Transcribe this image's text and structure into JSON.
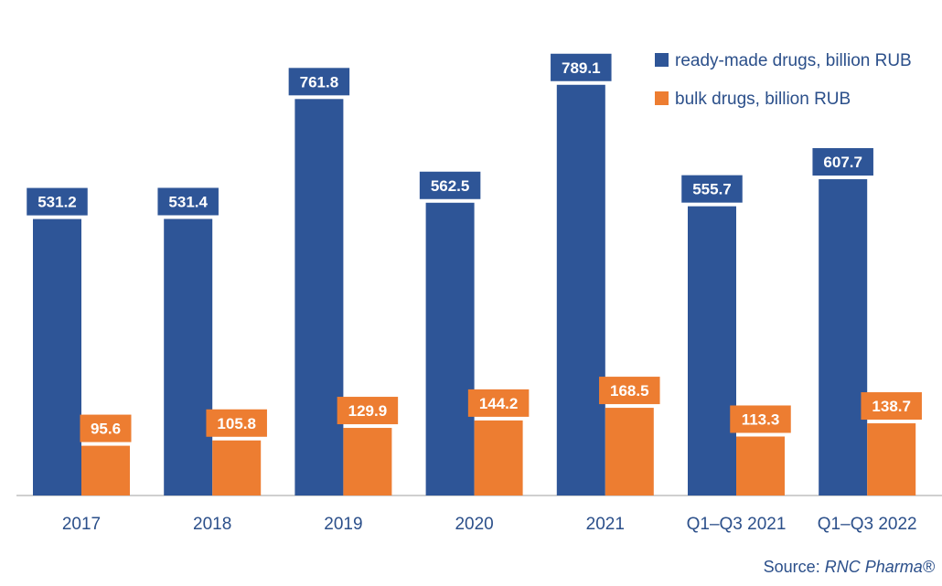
{
  "chart_data": {
    "type": "bar",
    "categories": [
      "2017",
      "2018",
      "2019",
      "2020",
      "2021",
      "Q1–Q3 2021",
      "Q1–Q3 2022"
    ],
    "series": [
      {
        "name": "ready-made drugs, billion RUB",
        "color": "#2e5597",
        "values": [
          531.2,
          531.4,
          761.8,
          562.5,
          789.1,
          555.7,
          607.7
        ]
      },
      {
        "name": "bulk drugs, billion RUB",
        "color": "#ed7d31",
        "values": [
          95.6,
          105.8,
          129.9,
          144.2,
          168.5,
          113.3,
          138.7
        ]
      }
    ],
    "data_labels": [
      [
        "531.2",
        "531.4",
        "761.8",
        "562.5",
        "789.1",
        "555.7",
        "607.7"
      ],
      [
        "95.6",
        "105.8",
        "129.9",
        "144.2",
        "168.5",
        "113.3",
        "138.7"
      ]
    ],
    "ylim": [
      0,
      820
    ],
    "grid": false,
    "legend_position": "top-right"
  },
  "source": {
    "prefix": "Source: ",
    "brand": "RNC Pharma®"
  }
}
